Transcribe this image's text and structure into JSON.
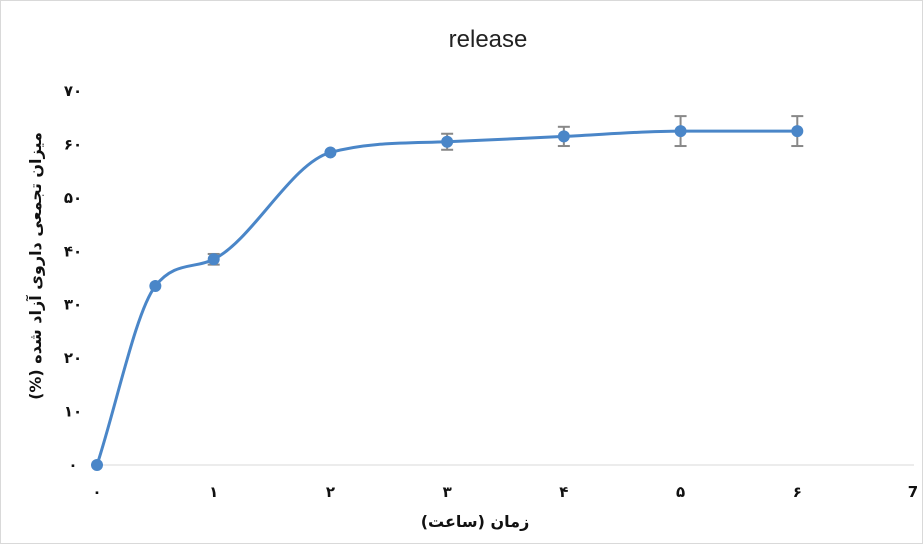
{
  "chart_data": {
    "type": "line",
    "title": "release",
    "xlabel": "زمان (ساعت)",
    "ylabel": "میزان تجمعی داروی آزاد شده (%)",
    "xlim": [
      0,
      7
    ],
    "ylim": [
      0,
      70
    ],
    "x_ticks": [
      0,
      1,
      2,
      3,
      4,
      5,
      6,
      7
    ],
    "x_tick_labels": [
      "۰",
      "۱",
      "۲",
      "۳",
      "۴",
      "۵",
      "۶",
      "7"
    ],
    "y_ticks": [
      0,
      10,
      20,
      30,
      40,
      50,
      60,
      70
    ],
    "y_tick_labels": [
      "۰",
      "۱۰",
      "۲۰",
      "۳۰",
      "۴۰",
      "۵۰",
      "۶۰",
      "۷۰"
    ],
    "grid": false,
    "smooth": true,
    "series": [
      {
        "color": "#4a86c8",
        "x": [
          0,
          0.5,
          1,
          2,
          3,
          4,
          5,
          6
        ],
        "y": [
          0,
          33.5,
          38.5,
          58.5,
          60.5,
          61.5,
          62.5,
          62.5
        ],
        "error": [
          0,
          0,
          1,
          0,
          1.5,
          1.8,
          2.8,
          2.8
        ]
      }
    ]
  }
}
